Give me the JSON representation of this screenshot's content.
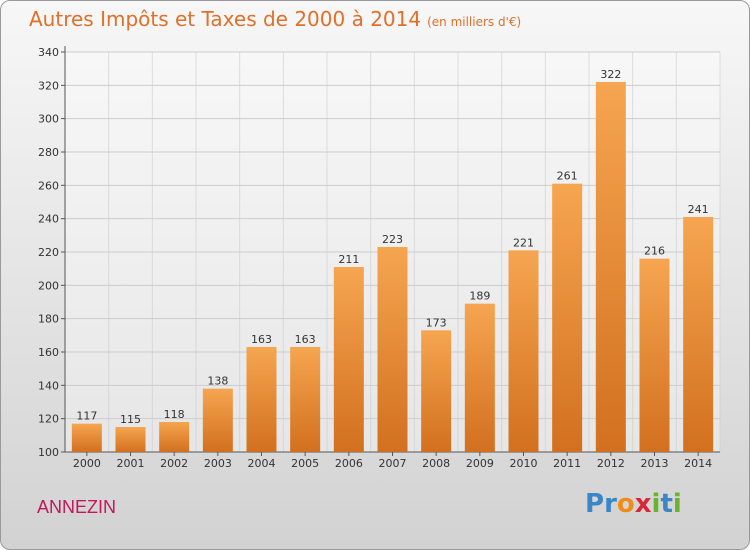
{
  "title": "Autres Impôts et Taxes de 2000 à 2014",
  "subtitle": "(en milliers d'€)",
  "city": "ANNEZIN",
  "logo": {
    "letters": [
      "P",
      "r",
      "o",
      "x",
      "i",
      "t",
      "i"
    ],
    "colors": [
      "#3a86c8",
      "#3a86c8",
      "#f08c1a",
      "#d8283a",
      "#6ab42d",
      "#3a86c8",
      "#6ab42d"
    ]
  },
  "colors": {
    "bar_light": "#f6a550",
    "bar_dark": "#d2701f",
    "title": "#e0702a",
    "city": "#c2185b",
    "grid": "#cccccc"
  },
  "chart_data": {
    "type": "bar",
    "categories": [
      "2000",
      "2001",
      "2002",
      "2003",
      "2004",
      "2005",
      "2006",
      "2007",
      "2008",
      "2009",
      "2010",
      "2011",
      "2012",
      "2013",
      "2014"
    ],
    "values": [
      117,
      115,
      118,
      138,
      163,
      163,
      211,
      223,
      173,
      189,
      221,
      261,
      322,
      216,
      241
    ],
    "ylim": [
      100,
      340
    ],
    "yticks": [
      100,
      120,
      140,
      160,
      180,
      200,
      220,
      240,
      260,
      280,
      300,
      320,
      340
    ],
    "grid": true
  }
}
